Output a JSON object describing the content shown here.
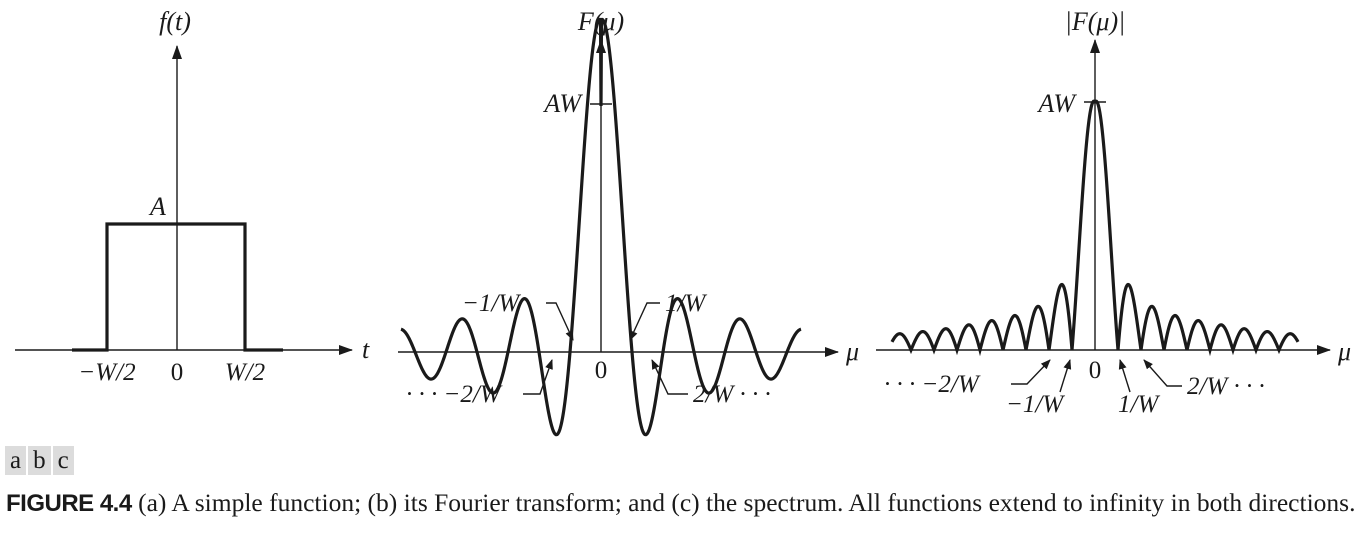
{
  "figure": {
    "panel_a": {
      "ylabel": "f(t)",
      "xlabel": "t",
      "level_label": "A",
      "ticks": [
        "−W/2",
        "0",
        "W/2"
      ]
    },
    "panel_b": {
      "ylabel": "F(μ)",
      "xlabel": "μ",
      "peak_label": "AW",
      "origin": "0",
      "ann_neg1": "−1/W",
      "ann_pos1": "1/W",
      "ann_neg2": "· · · −2/W",
      "ann_pos2": "2/W · · ·"
    },
    "panel_c": {
      "ylabel": "|F(μ)|",
      "xlabel": "μ",
      "peak_label": "AW",
      "origin": "0",
      "ann_neg2": "· · · −2/W",
      "ann_neg1": "−1/W",
      "ann_pos1": "1/W",
      "ann_pos2": "2/W · · ·"
    }
  },
  "panel_tags": [
    "a",
    "b",
    "c"
  ],
  "caption": {
    "label": "FIGURE 4.4",
    "text": " (a) A simple function; (b) its Fourier transform; and (c) the spectrum. All functions extend to infinity in both directions."
  }
}
